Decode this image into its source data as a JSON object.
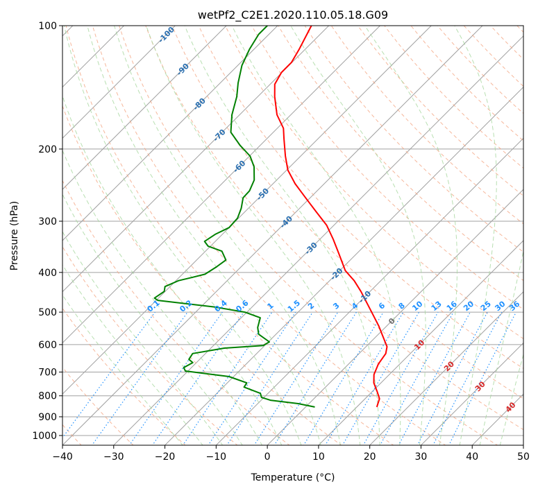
{
  "chart_data": {
    "type": "line",
    "subtype": "skew-t log-p",
    "title": "wetPf2_C2E1.2020.110.05.18.G09",
    "xlabel": "Temperature (°C)",
    "ylabel": "Pressure (hPa)",
    "xlim": [
      -40,
      50
    ],
    "ylim": [
      1050,
      100
    ],
    "xticks": [
      -40,
      -30,
      -20,
      -10,
      0,
      10,
      20,
      30,
      40,
      50
    ],
    "yticks": [
      100,
      200,
      300,
      400,
      500,
      600,
      700,
      800,
      900,
      1000
    ],
    "grid": true,
    "series": [
      {
        "name": "Temperature",
        "color": "#ff0000",
        "pressure_hpa": [
          852,
          813,
          782,
          744,
          710,
          669,
          631,
          607,
          573,
          540,
          510,
          481,
          445,
          419,
          396,
          359,
          332,
          307,
          284,
          263,
          243,
          225,
          208,
          189,
          178,
          165,
          149,
          139,
          130,
          123,
          114,
          100
        ],
        "temperature_c": [
          13.9,
          12.8,
          11.0,
          8.6,
          7.0,
          5.8,
          5.2,
          4.1,
          1.3,
          -1.6,
          -4.6,
          -7.7,
          -11.8,
          -15.2,
          -18.9,
          -23.6,
          -27.4,
          -31.4,
          -36.2,
          -40.9,
          -45.7,
          -49.8,
          -53.0,
          -56.6,
          -58.8,
          -62.7,
          -66.7,
          -69.1,
          -70.1,
          -70.1,
          -71.2,
          -73.4
        ]
      },
      {
        "name": "Dewpoint",
        "color": "#008000",
        "pressure_hpa": [
          852,
          836,
          820,
          807,
          789,
          762,
          744,
          718,
          696,
          683,
          664,
          652,
          631,
          612,
          603,
          591,
          566,
          545,
          516,
          500,
          486,
          468,
          462,
          445,
          433,
          419,
          411,
          404,
          388,
          373,
          355,
          345,
          336,
          323,
          311,
          295,
          279,
          263,
          253,
          238,
          221,
          208,
          196,
          182,
          165,
          149,
          138,
          125,
          114,
          105,
          100
        ],
        "temperature_c": [
          1.8,
          -2.1,
          -8.2,
          -10.5,
          -11.5,
          -15.9,
          -16.2,
          -20.9,
          -30.5,
          -31.5,
          -30.7,
          -32.1,
          -32.5,
          -27.4,
          -20.3,
          -19.8,
          -23.4,
          -24.9,
          -26.3,
          -30.4,
          -37.2,
          -49.7,
          -50.8,
          -50.2,
          -51.0,
          -49.5,
          -47.4,
          -45.6,
          -44.8,
          -44.3,
          -46.8,
          -50.5,
          -52.1,
          -51.4,
          -50.0,
          -50.2,
          -51.4,
          -53.1,
          -53.2,
          -54.4,
          -57.0,
          -59.9,
          -63.9,
          -68.3,
          -71.5,
          -74.1,
          -76.5,
          -79.2,
          -80.9,
          -82.0,
          -82.0
        ]
      }
    ],
    "isotherm_labels": [
      -100,
      -90,
      -80,
      -70,
      -60,
      -50,
      -40,
      -30,
      -20,
      -10,
      0,
      10,
      20,
      30,
      40
    ],
    "mixing_ratio_labels": [
      "0.1",
      "0.2",
      "0.4",
      "0.6",
      "1",
      "1.5",
      "2",
      "3",
      "4",
      "6",
      "8",
      "10",
      "13",
      "16",
      "20",
      "25",
      "30",
      "36"
    ],
    "colors": {
      "isotherm": "#a0a0a0",
      "dry_adiabat": "#f4a582",
      "moist_adiabat": "#a6d79e",
      "mixing_ratio": "#1e90ff",
      "label_cold": "#2a6fb0",
      "label_zero": "#707070",
      "label_warm": "#d62728"
    }
  }
}
